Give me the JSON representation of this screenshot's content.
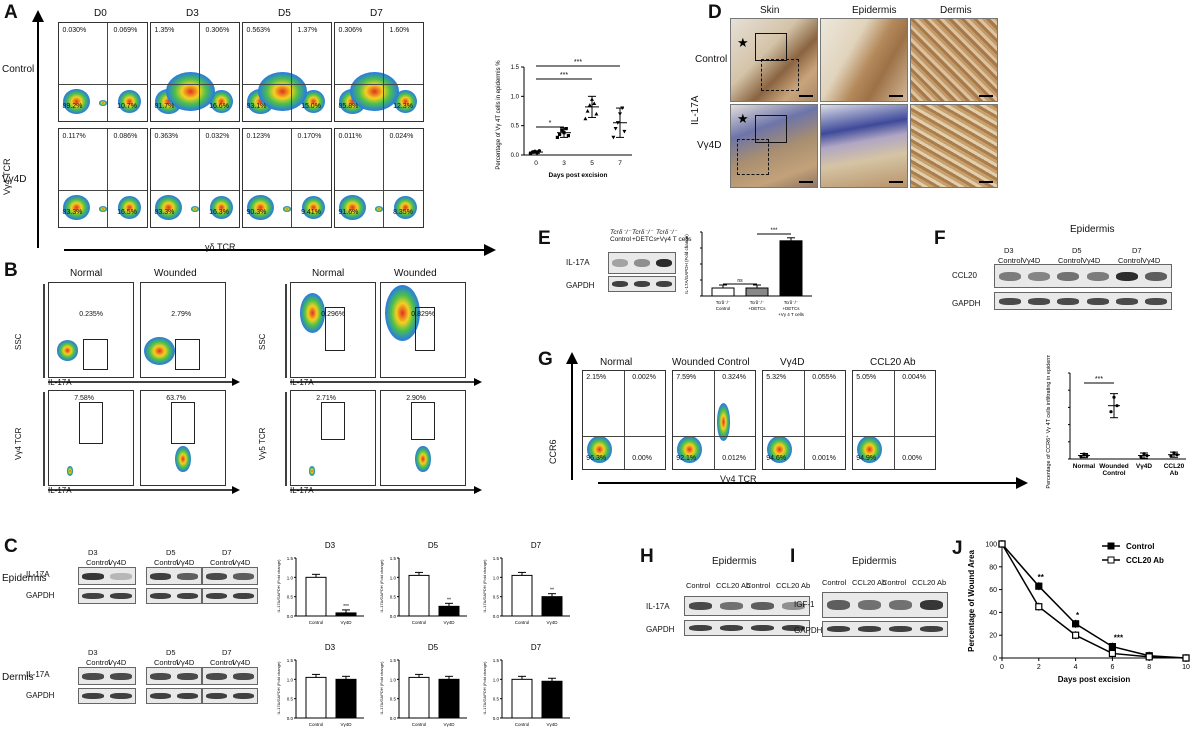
{
  "panels": {
    "A": {
      "label": "A",
      "cols": [
        "D0",
        "D3",
        "D5",
        "D7"
      ],
      "rows": [
        "Control",
        "Vγ4D"
      ],
      "ylabel": "Vγ4 TCR",
      "xlabel": "γδ TCR",
      "quads": [
        [
          "0.030%",
          "0.069%",
          "89.2%",
          "10.7%"
        ],
        [
          "1.35%",
          "0.306%",
          "81.7%",
          "16.6%"
        ],
        [
          "0.563%",
          "1.37%",
          "83.1%",
          "15.0%"
        ],
        [
          "0.306%",
          "1.60%",
          "85.8%",
          "12.3%"
        ],
        [
          "0.117%",
          "0.086%",
          "83.3%",
          "16.5%"
        ],
        [
          "0.363%",
          "0.032%",
          "83.3%",
          "16.3%"
        ],
        [
          "0.123%",
          "0.170%",
          "90.3%",
          "9.41%"
        ],
        [
          "0.011%",
          "0.024%",
          "91.6%",
          "8.35%"
        ]
      ]
    },
    "B": {
      "label": "B",
      "heads": [
        "Normal",
        "Wounded",
        "Normal",
        "Wounded"
      ],
      "top_pcts": [
        "0.235%",
        "2.79%",
        "0.296%",
        "0.829%"
      ],
      "bottom_pcts": [
        "7.58%",
        "63.7%",
        "2.71%",
        "2.90%"
      ],
      "ylabels": [
        "SSC",
        "SSC",
        "Vγ4 TCR",
        "Vγ5 TCR"
      ],
      "xlabel": "IL-17A"
    },
    "C": {
      "label": "C",
      "rows": [
        "Epidermis",
        "Dermis"
      ],
      "days": [
        "D3",
        "D5",
        "D7"
      ],
      "lanes": [
        "Control",
        "Vγ4D"
      ],
      "bands": [
        "IL-17A",
        "GAPDH"
      ],
      "bar_ylabel": "IL-17A/GAPDH (Fold change)"
    },
    "D": {
      "label": "D",
      "cols": [
        "Skin",
        "Epidermis",
        "Dermis"
      ],
      "rows": [
        "Control",
        "Vγ4D"
      ],
      "side": "IL-17A",
      "star": "★"
    },
    "E": {
      "label": "E",
      "lane_tcr": [
        "Tcrδ⁻/⁻",
        "Tcrδ⁻/⁻",
        "Tcrδ⁻/⁻"
      ],
      "lanes": [
        "Control",
        "+DETCs",
        "+Vγ4  T cells"
      ],
      "bands": [
        "IL-17A",
        "GAPDH"
      ],
      "ylabel": "IL-17A/GAPDH (Fold change)",
      "xticks": [
        "Tcrδ⁻/⁻ Control",
        "Tcrδ⁻/⁻ +DETCs",
        "Tcrδ⁻/⁻ +DETCs +Vγ 4 T cells"
      ],
      "sig": [
        "ns",
        "***"
      ]
    },
    "F": {
      "label": "F",
      "title": "Epidermis",
      "days": [
        "D3",
        "D5",
        "D7"
      ],
      "lanes": [
        "Control",
        "Vγ4D"
      ],
      "bands": [
        "CCL20",
        "GAPDH"
      ]
    },
    "G": {
      "label": "G",
      "heads": [
        "Normal",
        "Wounded Control",
        "Vγ4D",
        "CCL20 Ab"
      ],
      "quads": [
        [
          "2.15%",
          "0.002%",
          "96.3%",
          "0.00%"
        ],
        [
          "7.59%",
          "0.324%",
          "92.1%",
          "0.012%"
        ],
        [
          "5.32%",
          "0.055%",
          "94.6%",
          "0.001%"
        ],
        [
          "5.05%",
          "0.004%",
          "94.9%",
          "0.00%"
        ]
      ],
      "ylabel": "CCR6",
      "xlabel": "Vγ4 TCR"
    },
    "H": {
      "label": "H",
      "title": "Epidermis",
      "lanes": [
        "Control",
        "CCL20 Ab",
        "Control",
        "CCL20 Ab"
      ],
      "bands": [
        "IL-17A",
        "GAPDH"
      ]
    },
    "I": {
      "label": "I",
      "title": "Epidermis",
      "lanes": [
        "Control",
        "CCL20 Ab",
        "Control",
        "CCL20 Ab"
      ],
      "bands": [
        "IGF-1",
        "GAPDH"
      ]
    }
  },
  "charts": {
    "A_scatter": {
      "type": "scatter",
      "ylabel": "Percentage of Vγ 4T cells in epidermis %",
      "xlabel": "Days post excision",
      "categories": [
        "0",
        "3",
        "5",
        "7"
      ],
      "yticks": [
        "0.0",
        "0.5",
        "1.0",
        "1.5"
      ],
      "ylim": [
        0,
        1.5
      ],
      "means": [
        0.05,
        0.38,
        0.82,
        0.55
      ],
      "sd": [
        0.02,
        0.08,
        0.18,
        0.25
      ],
      "points": [
        [
          0.03,
          0.05,
          0.06,
          0.04,
          0.07
        ],
        [
          0.3,
          0.35,
          0.42,
          0.38,
          0.45,
          0.33
        ],
        [
          0.62,
          0.75,
          0.85,
          0.95,
          0.88,
          0.7
        ],
        [
          0.3,
          0.45,
          0.55,
          0.7,
          0.8,
          0.4
        ]
      ],
      "sig": [
        "*",
        "***",
        "***"
      ]
    },
    "C_bars": {
      "type": "bar",
      "titles": [
        "D3",
        "D5",
        "D7",
        "D3",
        "D5",
        "D7"
      ],
      "categories": [
        "Control",
        "Vγ4D"
      ],
      "yticks": [
        "0.0",
        "0.5",
        "1.0",
        "1.5"
      ],
      "ylabel": "IL-17A/GAPDH (Fold change)",
      "values": [
        [
          1.0,
          0.08
        ],
        [
          1.05,
          0.25
        ],
        [
          1.05,
          0.5
        ],
        [
          1.05,
          1.0
        ],
        [
          1.05,
          1.0
        ],
        [
          1.0,
          0.95
        ]
      ],
      "sig": [
        "***",
        "**",
        "**",
        "",
        "",
        ""
      ]
    },
    "E_bars": {
      "type": "bar",
      "values": [
        1.0,
        1.0,
        6.9
      ],
      "ylim": [
        0,
        8
      ]
    },
    "G_scatter": {
      "type": "scatter",
      "ylabel": "Percentage of CCR6⁺ Vγ 4T cells infiltrating in epidermis%",
      "categories": [
        "Normal",
        "Wounded Control",
        "Vγ4D",
        "CCL20 Ab"
      ],
      "yticks": [
        "0.0",
        "0.1",
        "0.2",
        "0.3",
        "0.4",
        "0.5"
      ],
      "ylim": [
        0,
        0.5
      ],
      "means": [
        0.02,
        0.31,
        0.02,
        0.025
      ],
      "sd": [
        0.012,
        0.07,
        0.015,
        0.015
      ],
      "sig": [
        "***"
      ]
    },
    "J_line": {
      "type": "line",
      "label": "J",
      "ylabel": "Percentage of Wound Area",
      "xlabel": "Days post excision",
      "xticks": [
        "0",
        "2",
        "4",
        "6",
        "8",
        "10"
      ],
      "yticks": [
        "0",
        "20",
        "40",
        "60",
        "80",
        "100"
      ],
      "ylim": [
        0,
        100
      ],
      "series": [
        {
          "name": "Control",
          "x": [
            0,
            2,
            4,
            6,
            8,
            10
          ],
          "y": [
            100,
            63,
            30,
            10,
            2,
            0
          ]
        },
        {
          "name": "CCL20 Ab",
          "x": [
            0,
            2,
            4,
            6,
            8,
            10
          ],
          "y": [
            100,
            45,
            20,
            4,
            1,
            0
          ]
        }
      ],
      "sig": [
        {
          "x": 2,
          "t": "**"
        },
        {
          "x": 4,
          "t": "*"
        },
        {
          "x": 6,
          "t": "***"
        }
      ]
    }
  }
}
